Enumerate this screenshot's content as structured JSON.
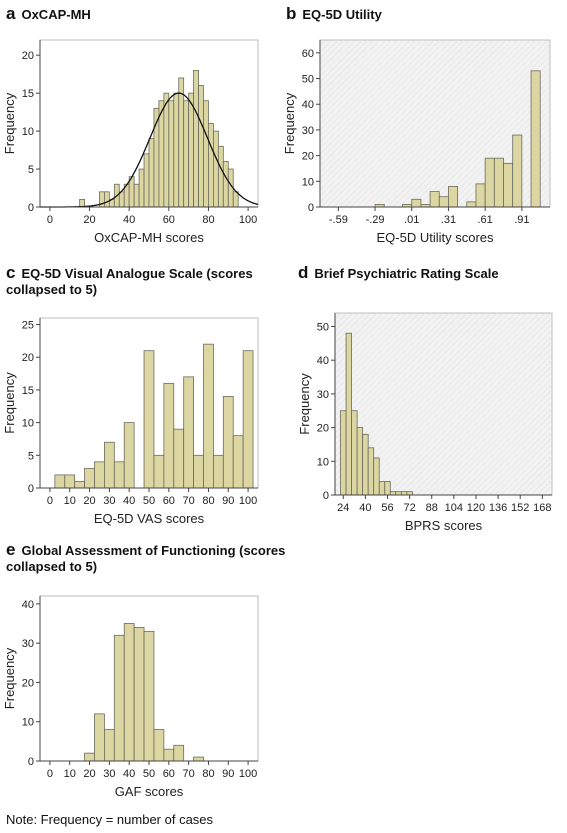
{
  "note": "Note:  Frequency = number of cases",
  "chart_data": [
    {
      "type": "bar",
      "letter": "a",
      "title": "OxCAP-MH",
      "xlabel": "OxCAP-MH scores",
      "ylabel": "Frequency",
      "xticks": [
        0,
        20,
        40,
        60,
        80,
        100
      ],
      "xtick_labels": [
        "0",
        "20",
        "40",
        "60",
        "80",
        "100"
      ],
      "yticks": [
        0,
        5,
        10,
        15,
        20
      ],
      "xlim": [
        -5,
        105
      ],
      "ylim": [
        0,
        22
      ],
      "grid": false,
      "bin_width": 2.5,
      "bins_start": [
        15,
        25,
        27.5,
        30,
        32.5,
        35,
        37.5,
        40,
        42.5,
        45,
        47.5,
        50,
        52.5,
        55,
        57.5,
        60,
        62.5,
        65,
        67.5,
        70,
        72.5,
        75,
        77.5,
        80,
        82.5,
        85,
        87.5,
        90,
        92.5
      ],
      "values": [
        1,
        2,
        2,
        1,
        3,
        2,
        3,
        4,
        3,
        5,
        7,
        9,
        13,
        14,
        15,
        14,
        15,
        17,
        14,
        15,
        18,
        16,
        14,
        11,
        10,
        8,
        6,
        5,
        2
      ],
      "normal_curve": {
        "mean": 65,
        "sd": 14.5,
        "peak": 15
      }
    },
    {
      "type": "bar",
      "letter": "b",
      "title": "EQ-5D Utility",
      "xlabel": "EQ-5D Utility scores",
      "ylabel": "Frequency",
      "xticks": [
        -0.59,
        -0.29,
        0.01,
        0.31,
        0.61,
        0.91
      ],
      "xtick_labels": [
        "-.59",
        "-.29",
        ".01",
        ".31",
        ".61",
        ".91"
      ],
      "yticks": [
        0,
        10,
        20,
        30,
        40,
        50,
        60
      ],
      "xlim": [
        -0.74,
        1.14
      ],
      "ylim": [
        0,
        65
      ],
      "grid": true,
      "bin_width": 0.075,
      "bins_start": [
        -0.29,
        -0.065,
        0.01,
        0.085,
        0.16,
        0.235,
        0.31,
        0.46,
        0.535,
        0.61,
        0.685,
        0.76,
        0.835,
        0.985
      ],
      "values": [
        1,
        1,
        3,
        1,
        6,
        4,
        8,
        2,
        9,
        19,
        19,
        17,
        28,
        53
      ]
    },
    {
      "type": "bar",
      "letter": "c",
      "title": "EQ-5D Visual Analogue Scale (scores",
      "title_line2": "collapsed to 5)",
      "xlabel": "EQ-5D VAS scores",
      "ylabel": "Frequency",
      "xticks": [
        0,
        10,
        20,
        30,
        40,
        50,
        60,
        70,
        80,
        90,
        100
      ],
      "xtick_labels": [
        "0",
        "10",
        "20",
        "30",
        "40",
        "50",
        "60",
        "70",
        "80",
        "90",
        "100"
      ],
      "yticks": [
        0,
        5,
        10,
        15,
        20,
        25
      ],
      "xlim": [
        -5,
        105
      ],
      "ylim": [
        0,
        26
      ],
      "grid": false,
      "bin_width": 5,
      "bins_start": [
        2.5,
        7.5,
        12.5,
        17.5,
        22.5,
        27.5,
        32.5,
        37.5,
        47.5,
        52.5,
        57.5,
        62.5,
        67.5,
        72.5,
        77.5,
        82.5,
        87.5,
        92.5,
        97.5
      ],
      "values": [
        2,
        2,
        1,
        3,
        4,
        7,
        4,
        10,
        21,
        5,
        16,
        9,
        17,
        5,
        22,
        5,
        14,
        8,
        21
      ]
    },
    {
      "type": "bar",
      "letter": "d",
      "title": "Brief Psychiatric Rating Scale",
      "xlabel": "BPRS scores",
      "ylabel": "Frequency",
      "xticks": [
        24,
        40,
        56,
        72,
        88,
        104,
        120,
        136,
        152,
        168
      ],
      "xtick_labels": [
        "24",
        "40",
        "56",
        "72",
        "88",
        "104",
        "120",
        "136",
        "152",
        "168"
      ],
      "yticks": [
        0,
        10,
        20,
        30,
        40,
        50
      ],
      "xlim": [
        18,
        175
      ],
      "ylim": [
        0,
        54
      ],
      "grid": true,
      "bin_width": 4,
      "bins_start": [
        22,
        26,
        30,
        34,
        38,
        42,
        46,
        50,
        54,
        58,
        62,
        66,
        70
      ],
      "values": [
        25,
        48,
        25,
        20,
        18,
        14,
        11,
        4,
        4,
        1,
        1,
        1,
        1
      ]
    },
    {
      "type": "bar",
      "letter": "e",
      "title": "Global Assessment of Functioning (scores",
      "title_line2": "collapsed to 5)",
      "xlabel": "GAF scores",
      "ylabel": "Frequency",
      "xticks": [
        0,
        10,
        20,
        30,
        40,
        50,
        60,
        70,
        80,
        90,
        100
      ],
      "xtick_labels": [
        "0",
        "10",
        "20",
        "30",
        "40",
        "50",
        "60",
        "70",
        "80",
        "90",
        "100"
      ],
      "yticks": [
        0,
        10,
        20,
        30,
        40
      ],
      "xlim": [
        -5,
        105
      ],
      "ylim": [
        0,
        42
      ],
      "grid": false,
      "bin_width": 5,
      "bins_start": [
        17.5,
        22.5,
        27.5,
        32.5,
        37.5,
        42.5,
        47.5,
        52.5,
        57.5,
        62.5,
        72.5
      ],
      "values": [
        2,
        12,
        8,
        32,
        35,
        34,
        33,
        8,
        3,
        4,
        1
      ]
    }
  ]
}
